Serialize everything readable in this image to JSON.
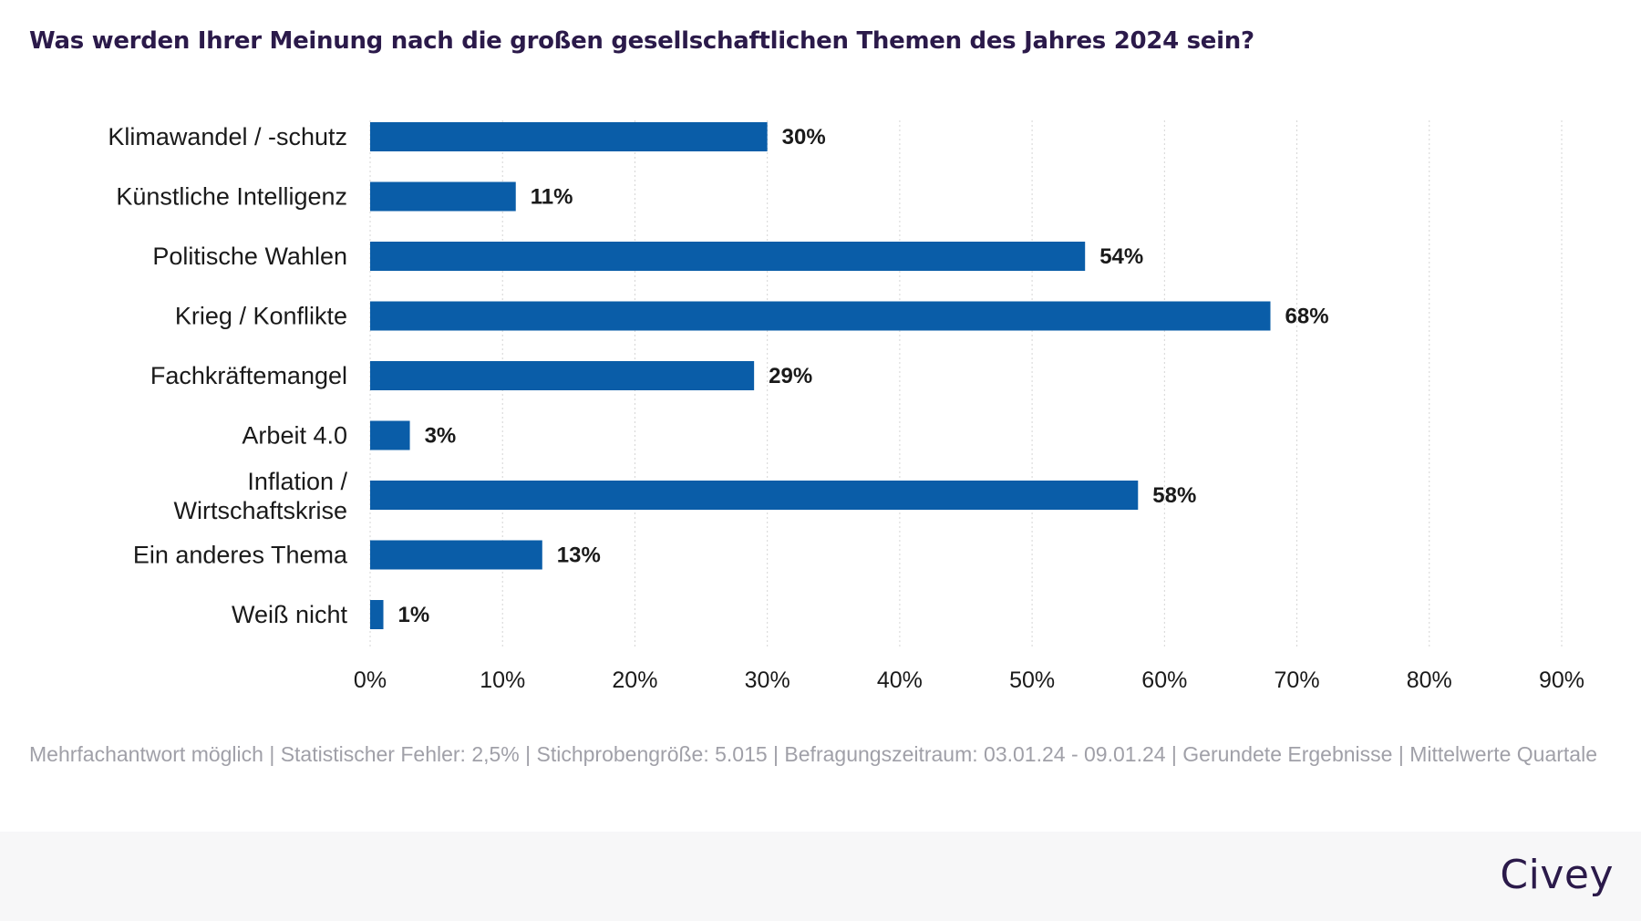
{
  "title": "Was werden Ihrer Meinung nach die großen gesellschaftlichen Themen des Jahres 2024 sein?",
  "footnote": "Mehrfachantwort möglich | Statistischer Fehler: 2,5% | Stichprobengröße: 5.015 | Befragungszeitraum: 03.01.24 - 09.01.24 | Gerundete Ergebnisse | Mittelwerte Quartale",
  "brand": {
    "name": "Civey",
    "color": "#2b1a4a"
  },
  "colors": {
    "bar": "#0a5da8",
    "grid": "#d5d5d5",
    "label": "#1a1a1a",
    "footer_bg": "#f7f7f8"
  },
  "chart_data": {
    "type": "bar",
    "orientation": "horizontal",
    "categories": [
      "Klimawandel / -schutz",
      "Künstliche Intelligenz",
      "Politische Wahlen",
      "Krieg / Konflikte",
      "Fachkräftemangel",
      "Arbeit 4.0",
      "Inflation / Wirtschaftskrise",
      "Ein anderes Thema",
      "Weiß nicht"
    ],
    "values": [
      30,
      11,
      54,
      68,
      29,
      3,
      58,
      13,
      1
    ],
    "value_labels": [
      "30%",
      "11%",
      "54%",
      "68%",
      "29%",
      "3%",
      "58%",
      "13%",
      "1%"
    ],
    "xlim": [
      0,
      90
    ],
    "xticks": [
      0,
      10,
      20,
      30,
      40,
      50,
      60,
      70,
      80,
      90
    ],
    "xtick_labels": [
      "0%",
      "10%",
      "20%",
      "30%",
      "40%",
      "50%",
      "60%",
      "70%",
      "80%",
      "90%"
    ],
    "grid": true,
    "xlabel": "",
    "ylabel": ""
  }
}
